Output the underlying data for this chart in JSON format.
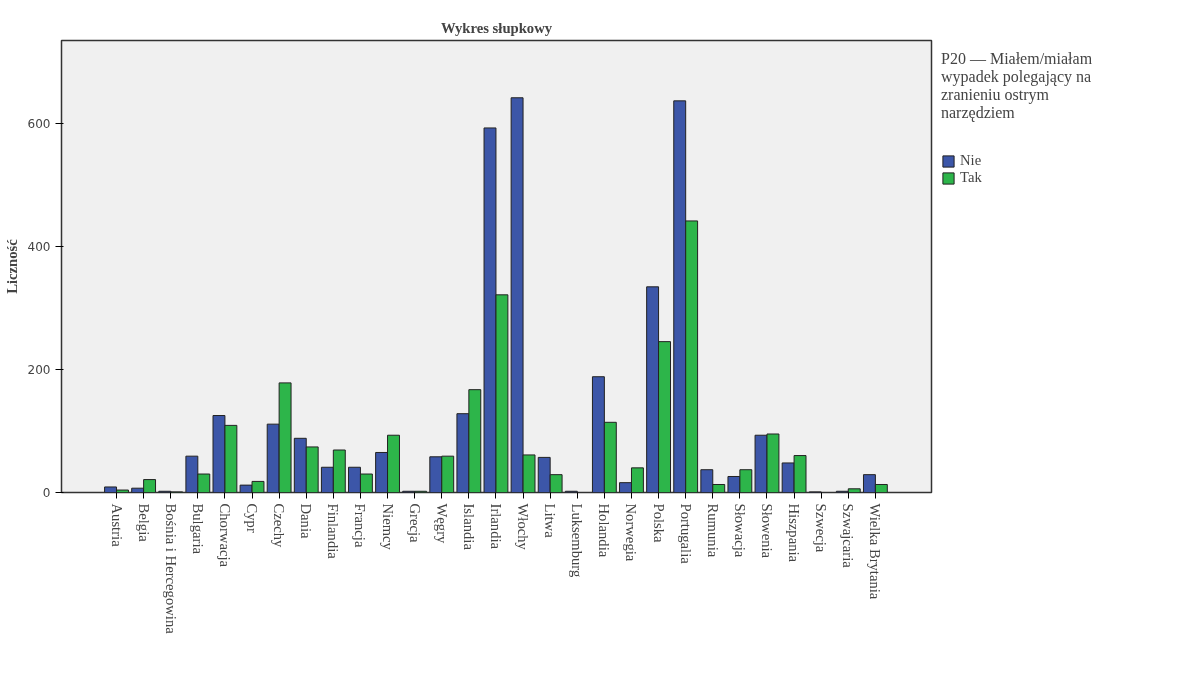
{
  "chart_data": {
    "type": "bar",
    "title": "Wykres słupkowy",
    "ylabel": "Liczność",
    "legend_title": "P20 — Miałem/miałam wypadek polegający na zranieniu ostrym narzędziem",
    "categories": [
      "Austria",
      "Belgia",
      "Bośnia i Hercegowina",
      "Bulgaria",
      "Chorwacja",
      "Cypr",
      "Czechy",
      "Dania",
      "Finlandia",
      "Francja",
      "Niemcy",
      "Grecja",
      "Węgry",
      "Islandia",
      "Irlandia",
      "Włochy",
      "Litwa",
      "Luksemburg",
      "Holandia",
      "Norwegia",
      "Polska",
      "Portugalia",
      "Rumunia",
      "Słowacja",
      "Słowenia",
      "Hiszpania",
      "Szwecja",
      "Szwajcaria",
      "Wielka Brytania"
    ],
    "series": [
      {
        "name": "Nie",
        "color": "#3c56a8",
        "values": [
          9,
          7,
          2,
          59,
          125,
          12,
          111,
          88,
          41,
          41,
          65,
          2,
          58,
          128,
          592,
          641,
          57,
          2,
          188,
          16,
          334,
          636,
          37,
          26,
          93,
          48,
          1,
          2,
          29
        ]
      },
      {
        "name": "Tak",
        "color": "#2db54a",
        "values": [
          4,
          21,
          1,
          30,
          109,
          18,
          178,
          74,
          69,
          30,
          93,
          2,
          59,
          167,
          321,
          61,
          29,
          null,
          114,
          40,
          245,
          441,
          13,
          37,
          95,
          60,
          null,
          6,
          13
        ]
      }
    ],
    "ylim": [
      0,
      734
    ],
    "yticks": [
      0,
      200,
      400,
      600
    ],
    "grid": false,
    "legend": "right"
  }
}
